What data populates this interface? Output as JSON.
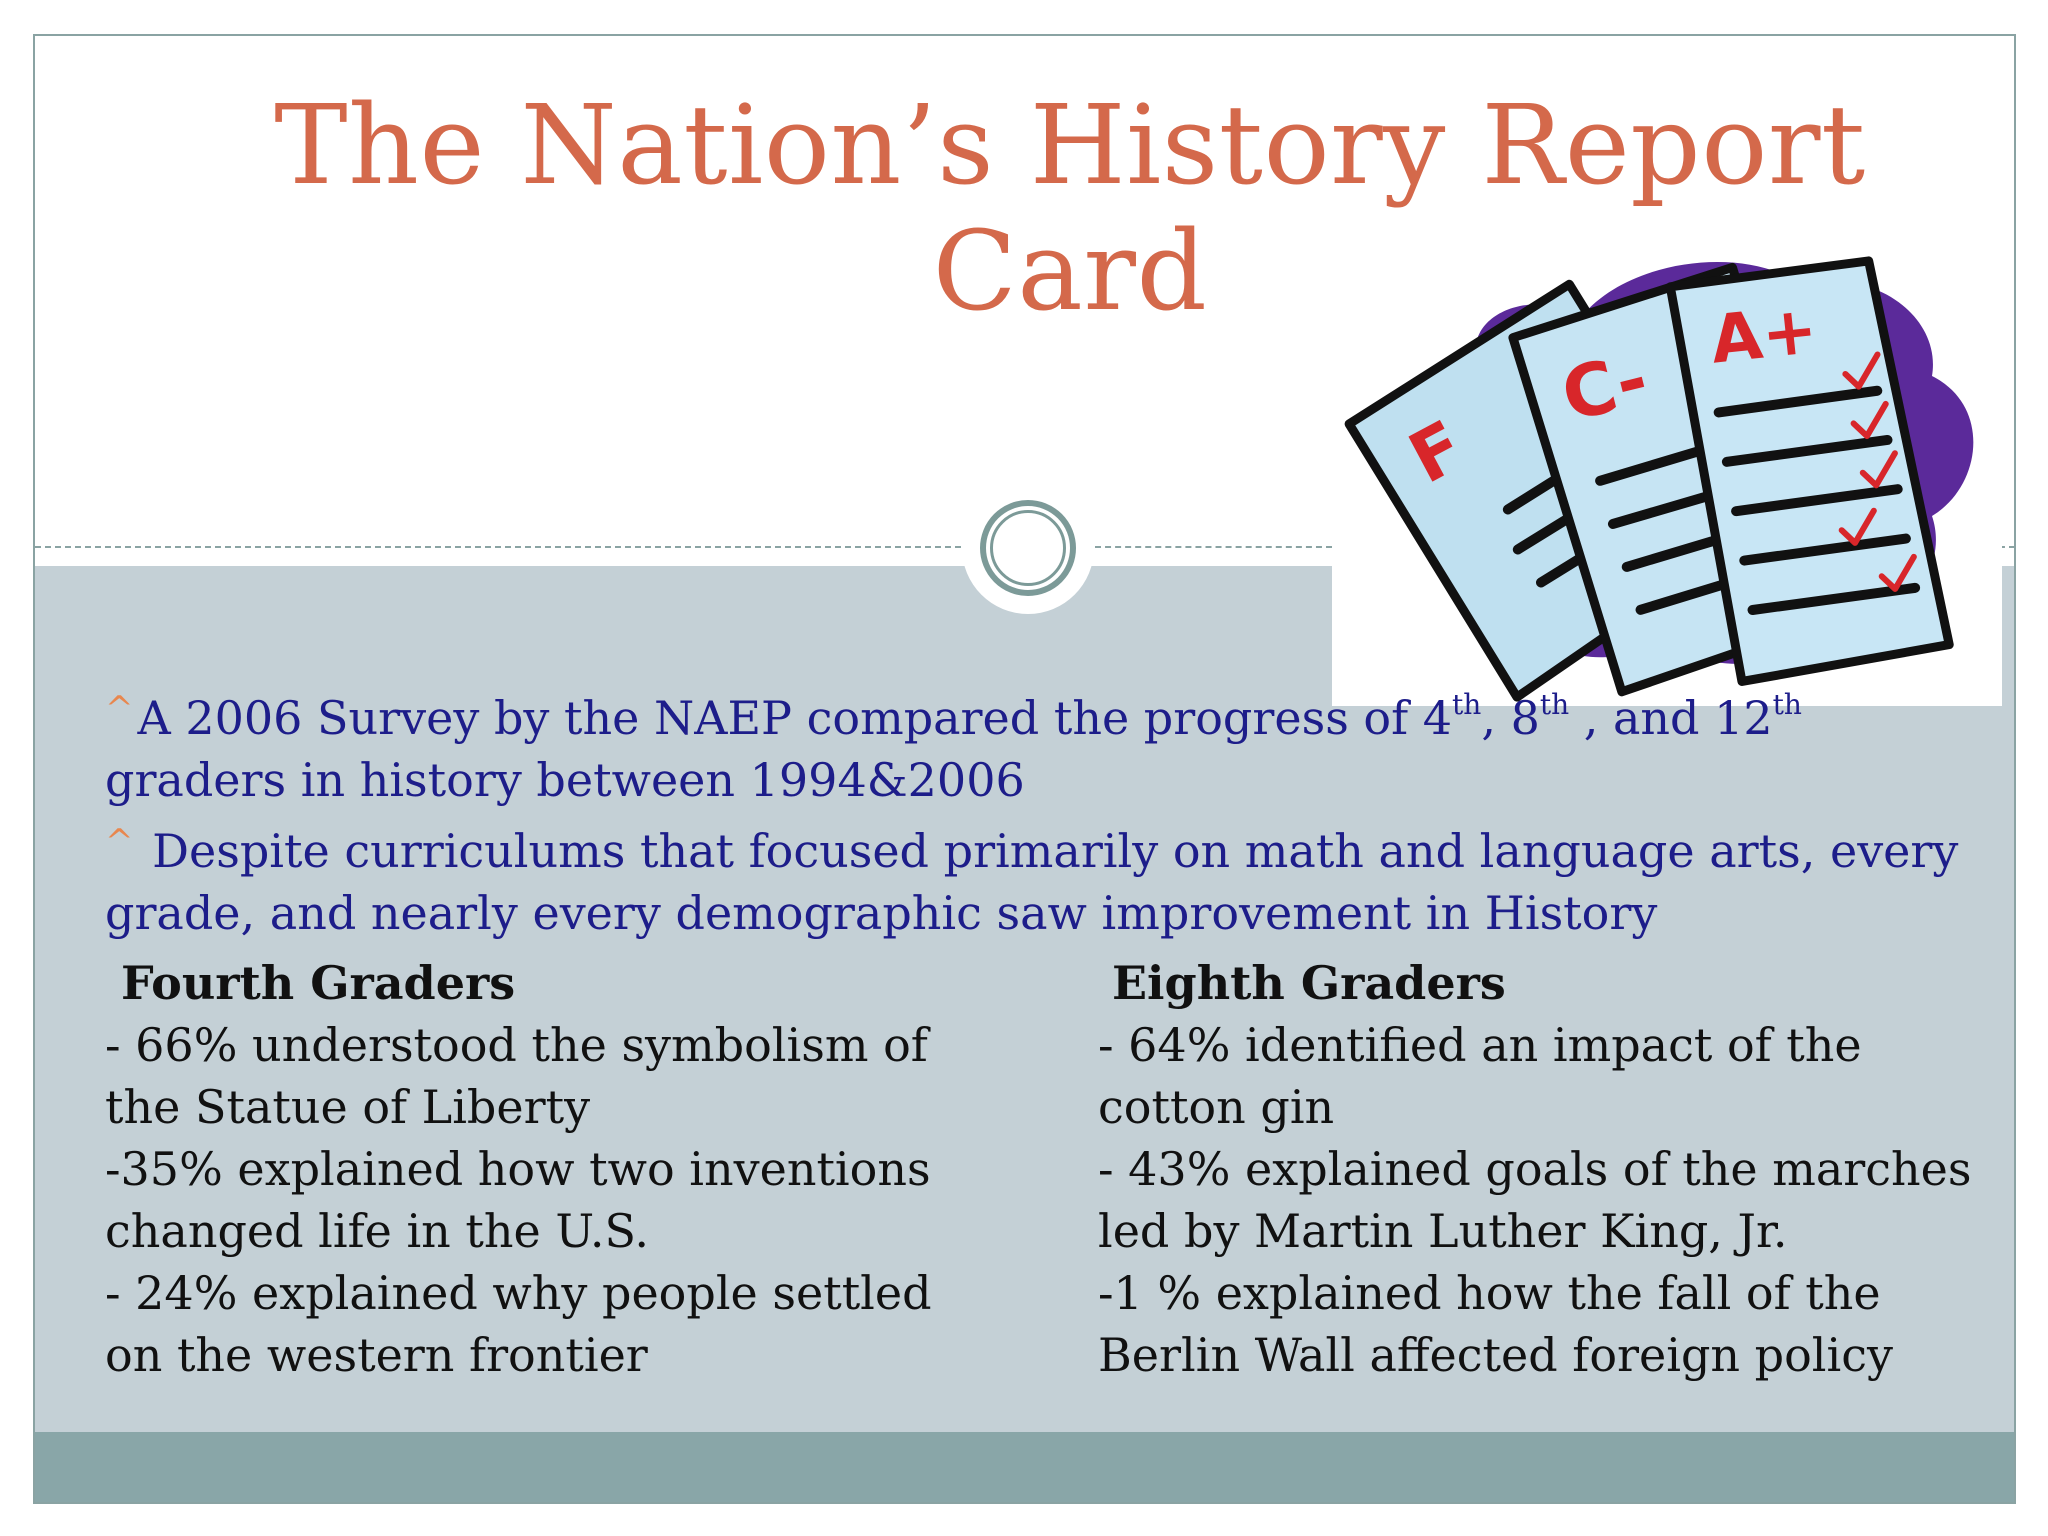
{
  "slide": {
    "title_line1": "The Nation’s History Report",
    "title_line2": "Card",
    "clipart_icon": "report-cards-clipart",
    "clipart_marks": {
      "grade_f": "F",
      "grade_c_minus": "C-",
      "grade_a_plus": "A+"
    },
    "colors": {
      "title": "#d4694b",
      "intro_text": "#1d1d8a",
      "bullet_caret": "#e8874f",
      "content_bg": "#c4d0d6",
      "footer_band": "#89a6a8"
    }
  },
  "intro": {
    "caret": "^",
    "p1_text_a": "A 2006 Survey by the NAEP compared the progress of 4",
    "p1_sup_a": "th",
    "p1_text_b": ", 8",
    "p1_sup_b": "th",
    "p1_text_c": " , and 12",
    "p1_sup_c": "th",
    "p1_text_d": "graders in history between 1994&2006",
    "p2_text": " Despite curriculums that focused primarily on math and language arts, every grade, and nearly every demographic saw improvement in History"
  },
  "fourth": {
    "heading": "Fourth Graders",
    "items": [
      "- 66% understood the symbolism of the Statue of Liberty",
      "-35% explained how two inventions changed life in the U.S.",
      "- 24% explained why people settled on the western frontier"
    ]
  },
  "eighth": {
    "heading": "Eighth Graders",
    "items": [
      "- 64% identified an impact of the cotton gin",
      "- 43% explained goals of the marches led by Martin Luther King, Jr.",
      "-1 % explained how the fall of the Berlin Wall affected foreign policy"
    ]
  }
}
